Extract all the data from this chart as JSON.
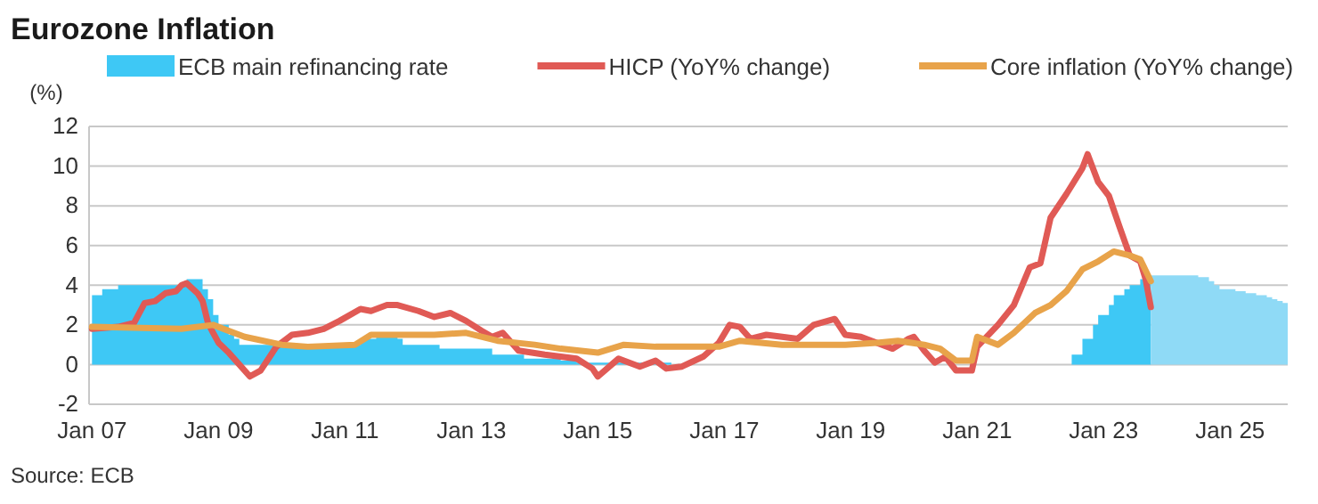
{
  "chart_data": {
    "type": "line",
    "title": "Eurozone Inflation",
    "ylabel": "(%)",
    "annotations": [
      "Source: ECB"
    ],
    "xlim": [
      "2006-12-15",
      "2025-11-30"
    ],
    "xticks": [
      {
        "value": "2007-01",
        "label": "Jan 07"
      },
      {
        "value": "2009-01",
        "label": "Jan 09"
      },
      {
        "value": "2011-01",
        "label": "Jan 11"
      },
      {
        "value": "2013-01",
        "label": "Jan 13"
      },
      {
        "value": "2015-01",
        "label": "Jan 15"
      },
      {
        "value": "2017-01",
        "label": "Jan 17"
      },
      {
        "value": "2019-01",
        "label": "Jan 19"
      },
      {
        "value": "2021-01",
        "label": "Jan 21"
      },
      {
        "value": "2023-01",
        "label": "Jan 23"
      },
      {
        "value": "2025-01",
        "label": "Jan 25"
      }
    ],
    "ylim": [
      -2,
      12
    ],
    "yticks": [
      -2,
      0,
      2,
      4,
      6,
      8,
      10,
      12
    ],
    "grid": "y",
    "legend": "top",
    "series": [
      {
        "name": "ECB main refinancing rate",
        "type": "area",
        "color": "#3ec8f5",
        "x": [
          "2007-01",
          "2007-03",
          "2007-06",
          "2008-07",
          "2008-10",
          "2008-11",
          "2008-12",
          "2009-01",
          "2009-03",
          "2009-04",
          "2009-05",
          "2011-04",
          "2011-07",
          "2011-11",
          "2011-12",
          "2012-07",
          "2013-05",
          "2013-11",
          "2014-06",
          "2014-09",
          "2016-03",
          "2022-07",
          "2022-09",
          "2022-11",
          "2022-12",
          "2023-02",
          "2023-03",
          "2023-05",
          "2023-06",
          "2023-08",
          "2023-09",
          "2023-10"
        ],
        "values": [
          3.5,
          3.8,
          4,
          4.3,
          3.8,
          3.3,
          2.5,
          2,
          1.5,
          1.3,
          1,
          1.3,
          1.5,
          1.3,
          1,
          0.8,
          0.5,
          0.3,
          0.2,
          0.1,
          0,
          0.5,
          1.3,
          2,
          2.5,
          3,
          3.5,
          3.8,
          4,
          4.3,
          4.5,
          4.5
        ]
      },
      {
        "type": "area",
        "color": "#8fdaf6",
        "x": [
          "2023-10",
          "2024-07",
          "2024-09",
          "2024-10",
          "2024-11",
          "2025-02",
          "2025-04",
          "2025-06",
          "2025-08",
          "2025-09",
          "2025-10",
          "2025-11",
          "2025-11-30"
        ],
        "values": [
          4.5,
          4.4,
          4.2,
          4,
          3.8,
          3.7,
          3.6,
          3.5,
          3.4,
          3.3,
          3.2,
          3.1,
          3.1
        ]
      },
      {
        "name": "HICP (YoY% change)",
        "color": "#e05a55",
        "x": [
          "2007-01",
          "2007-06",
          "2007-09",
          "2007-11",
          "2008-01",
          "2008-03",
          "2008-05",
          "2008-06",
          "2008-07",
          "2008-09",
          "2008-10",
          "2008-11",
          "2008-12",
          "2009-01",
          "2009-03",
          "2009-05",
          "2009-07",
          "2009-09",
          "2009-11",
          "2009-12",
          "2010-03",
          "2010-06",
          "2010-09",
          "2010-12",
          "2011-04",
          "2011-06",
          "2011-09",
          "2011-11",
          "2012-03",
          "2012-06",
          "2012-09",
          "2012-12",
          "2013-03",
          "2013-05",
          "2013-07",
          "2013-10",
          "2014-03",
          "2014-09",
          "2014-12",
          "2015-01",
          "2015-05",
          "2015-09",
          "2015-12",
          "2016-02",
          "2016-05",
          "2016-09",
          "2016-12",
          "2017-02",
          "2017-04",
          "2017-06",
          "2017-09",
          "2017-12",
          "2018-03",
          "2018-06",
          "2018-10",
          "2018-12",
          "2019-03",
          "2019-05",
          "2019-09",
          "2019-12",
          "2020-01",
          "2020-03",
          "2020-05",
          "2020-07",
          "2020-09",
          "2020-12",
          "2021-01",
          "2021-05",
          "2021-08",
          "2021-11",
          "2022-01",
          "2022-03",
          "2022-06",
          "2022-09",
          "2022-10",
          "2022-12",
          "2023-02",
          "2023-04",
          "2023-06",
          "2023-08",
          "2023-09",
          "2023-10"
        ],
        "values": [
          1.8,
          1.9,
          2.1,
          3.1,
          3.2,
          3.6,
          3.7,
          4,
          4.1,
          3.6,
          3.2,
          2.1,
          1.6,
          1.1,
          0.6,
          0,
          -0.6,
          -0.3,
          0.5,
          0.9,
          1.5,
          1.6,
          1.8,
          2.2,
          2.8,
          2.7,
          3,
          3,
          2.7,
          2.4,
          2.6,
          2.2,
          1.7,
          1.4,
          1.6,
          0.7,
          0.5,
          0.3,
          -0.2,
          -0.6,
          0.3,
          -0.1,
          0.2,
          -0.2,
          -0.1,
          0.4,
          1.1,
          2,
          1.9,
          1.3,
          1.5,
          1.4,
          1.3,
          2,
          2.3,
          1.5,
          1.4,
          1.2,
          0.8,
          1.3,
          1.4,
          0.7,
          0.1,
          0.4,
          -0.3,
          -0.3,
          0.9,
          2,
          3,
          4.9,
          5.1,
          7.4,
          8.6,
          9.9,
          10.6,
          9.2,
          8.5,
          7,
          5.5,
          5.2,
          4.3,
          2.9
        ]
      },
      {
        "name": "Core inflation (YoY% change)",
        "color": "#e8a34a",
        "x": [
          "2007-01",
          "2008-06",
          "2008-12",
          "2009-06",
          "2010-01",
          "2010-06",
          "2011-03",
          "2011-06",
          "2011-12",
          "2012-06",
          "2012-12",
          "2013-06",
          "2014-01",
          "2014-06",
          "2015-01",
          "2015-06",
          "2015-12",
          "2016-06",
          "2016-12",
          "2017-04",
          "2017-12",
          "2018-06",
          "2018-12",
          "2019-06",
          "2019-10",
          "2020-03",
          "2020-06",
          "2020-09",
          "2020-12",
          "2021-01",
          "2021-05",
          "2021-08",
          "2021-12",
          "2022-03",
          "2022-06",
          "2022-09",
          "2022-12",
          "2023-03",
          "2023-06",
          "2023-08",
          "2023-10"
        ],
        "values": [
          1.9,
          1.8,
          2,
          1.4,
          1,
          0.9,
          1,
          1.5,
          1.5,
          1.5,
          1.6,
          1.2,
          1,
          0.8,
          0.6,
          1,
          0.9,
          0.9,
          0.9,
          1.2,
          1,
          1,
          1,
          1.1,
          1.2,
          1,
          0.8,
          0.2,
          0.2,
          1.4,
          1,
          1.6,
          2.6,
          3,
          3.7,
          4.8,
          5.2,
          5.7,
          5.5,
          5.3,
          4.2
        ]
      }
    ]
  }
}
